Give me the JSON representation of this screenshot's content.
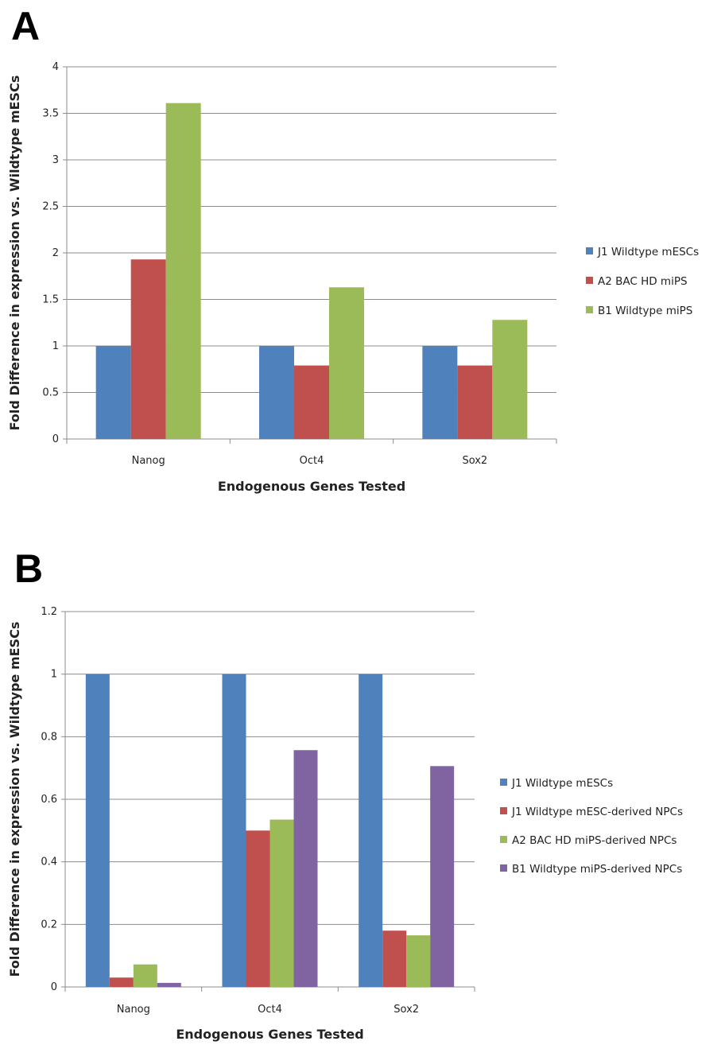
{
  "chart_data": [
    {
      "panel": "A",
      "type": "bar",
      "categories": [
        "Nanog",
        "Oct4",
        "Sox2"
      ],
      "series": [
        {
          "name": "J1 Wildtype mESCs",
          "values": [
            1,
            1,
            1
          ],
          "color": "#4F81BD"
        },
        {
          "name": "A2 BAC HD miPS",
          "values": [
            1.93,
            0.79,
            0.79
          ],
          "color": "#C0504D"
        },
        {
          "name": "B1 Wildtype miPS",
          "values": [
            3.61,
            1.63,
            1.28
          ],
          "color": "#9BBB59"
        }
      ],
      "xlabel": "Endogenous Genes Tested",
      "ylabel": "Fold Difference in expression vs. Wildtype mESCs",
      "ylim": [
        0,
        4
      ],
      "yticks": [
        "0",
        "0.5",
        "1",
        "1.5",
        "2",
        "2.5",
        "3",
        "3.5",
        "4"
      ],
      "grid": true,
      "legend": "right"
    },
    {
      "panel": "B",
      "type": "bar",
      "categories": [
        "Nanog",
        "Oct4",
        "Sox2"
      ],
      "series": [
        {
          "name": "J1 Wildtype mESCs",
          "values": [
            1,
            1,
            1
          ],
          "color": "#4F81BD"
        },
        {
          "name": "J1 Wildtype mESC-derived NPCs",
          "values": [
            0.03,
            0.5,
            0.18
          ],
          "color": "#C0504D"
        },
        {
          "name": "A2 BAC HD miPS-derived NPCs",
          "values": [
            0.072,
            0.535,
            0.165
          ],
          "color": "#9BBB59"
        },
        {
          "name": "B1 Wildtype miPS-derived NPCs",
          "values": [
            0.013,
            0.757,
            0.706
          ],
          "color": "#8064A2"
        }
      ],
      "xlabel": "Endogenous Genes Tested",
      "ylabel": "Fold Difference in expression vs. Wildtype mESCs",
      "ylim": [
        0,
        1.2
      ],
      "yticks": [
        "0",
        "0.2",
        "0.4",
        "0.6",
        "0.8",
        "1",
        "1.2"
      ],
      "grid": true,
      "legend": "right"
    }
  ]
}
